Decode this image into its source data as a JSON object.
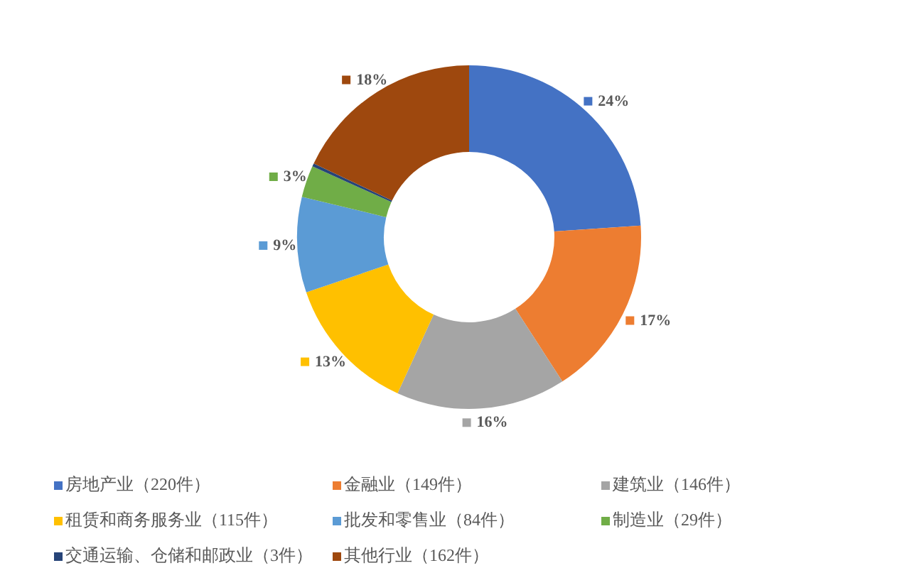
{
  "chart_data": {
    "type": "donut",
    "categories": [
      "房地产业（220件）",
      "金融业（149件）",
      "建筑业（146件）",
      "租赁和商务服务业（115件）",
      "批发和零售业（84件）",
      "制造业（29件）",
      "交通运输、仓储和邮政业（3件）",
      "其他行业（162件）"
    ],
    "values": [
      24,
      17,
      16,
      13,
      9,
      3,
      0.3,
      18
    ],
    "colors": [
      "#4472c4",
      "#ed7d31",
      "#a5a5a5",
      "#ffc000",
      "#5b9bd5",
      "#70ad47",
      "#264478",
      "#9e480e"
    ],
    "value_labels": [
      "24%",
      "17%",
      "16%",
      "13%",
      "9%",
      "3%",
      null,
      "18%"
    ],
    "legend": "bottom"
  }
}
